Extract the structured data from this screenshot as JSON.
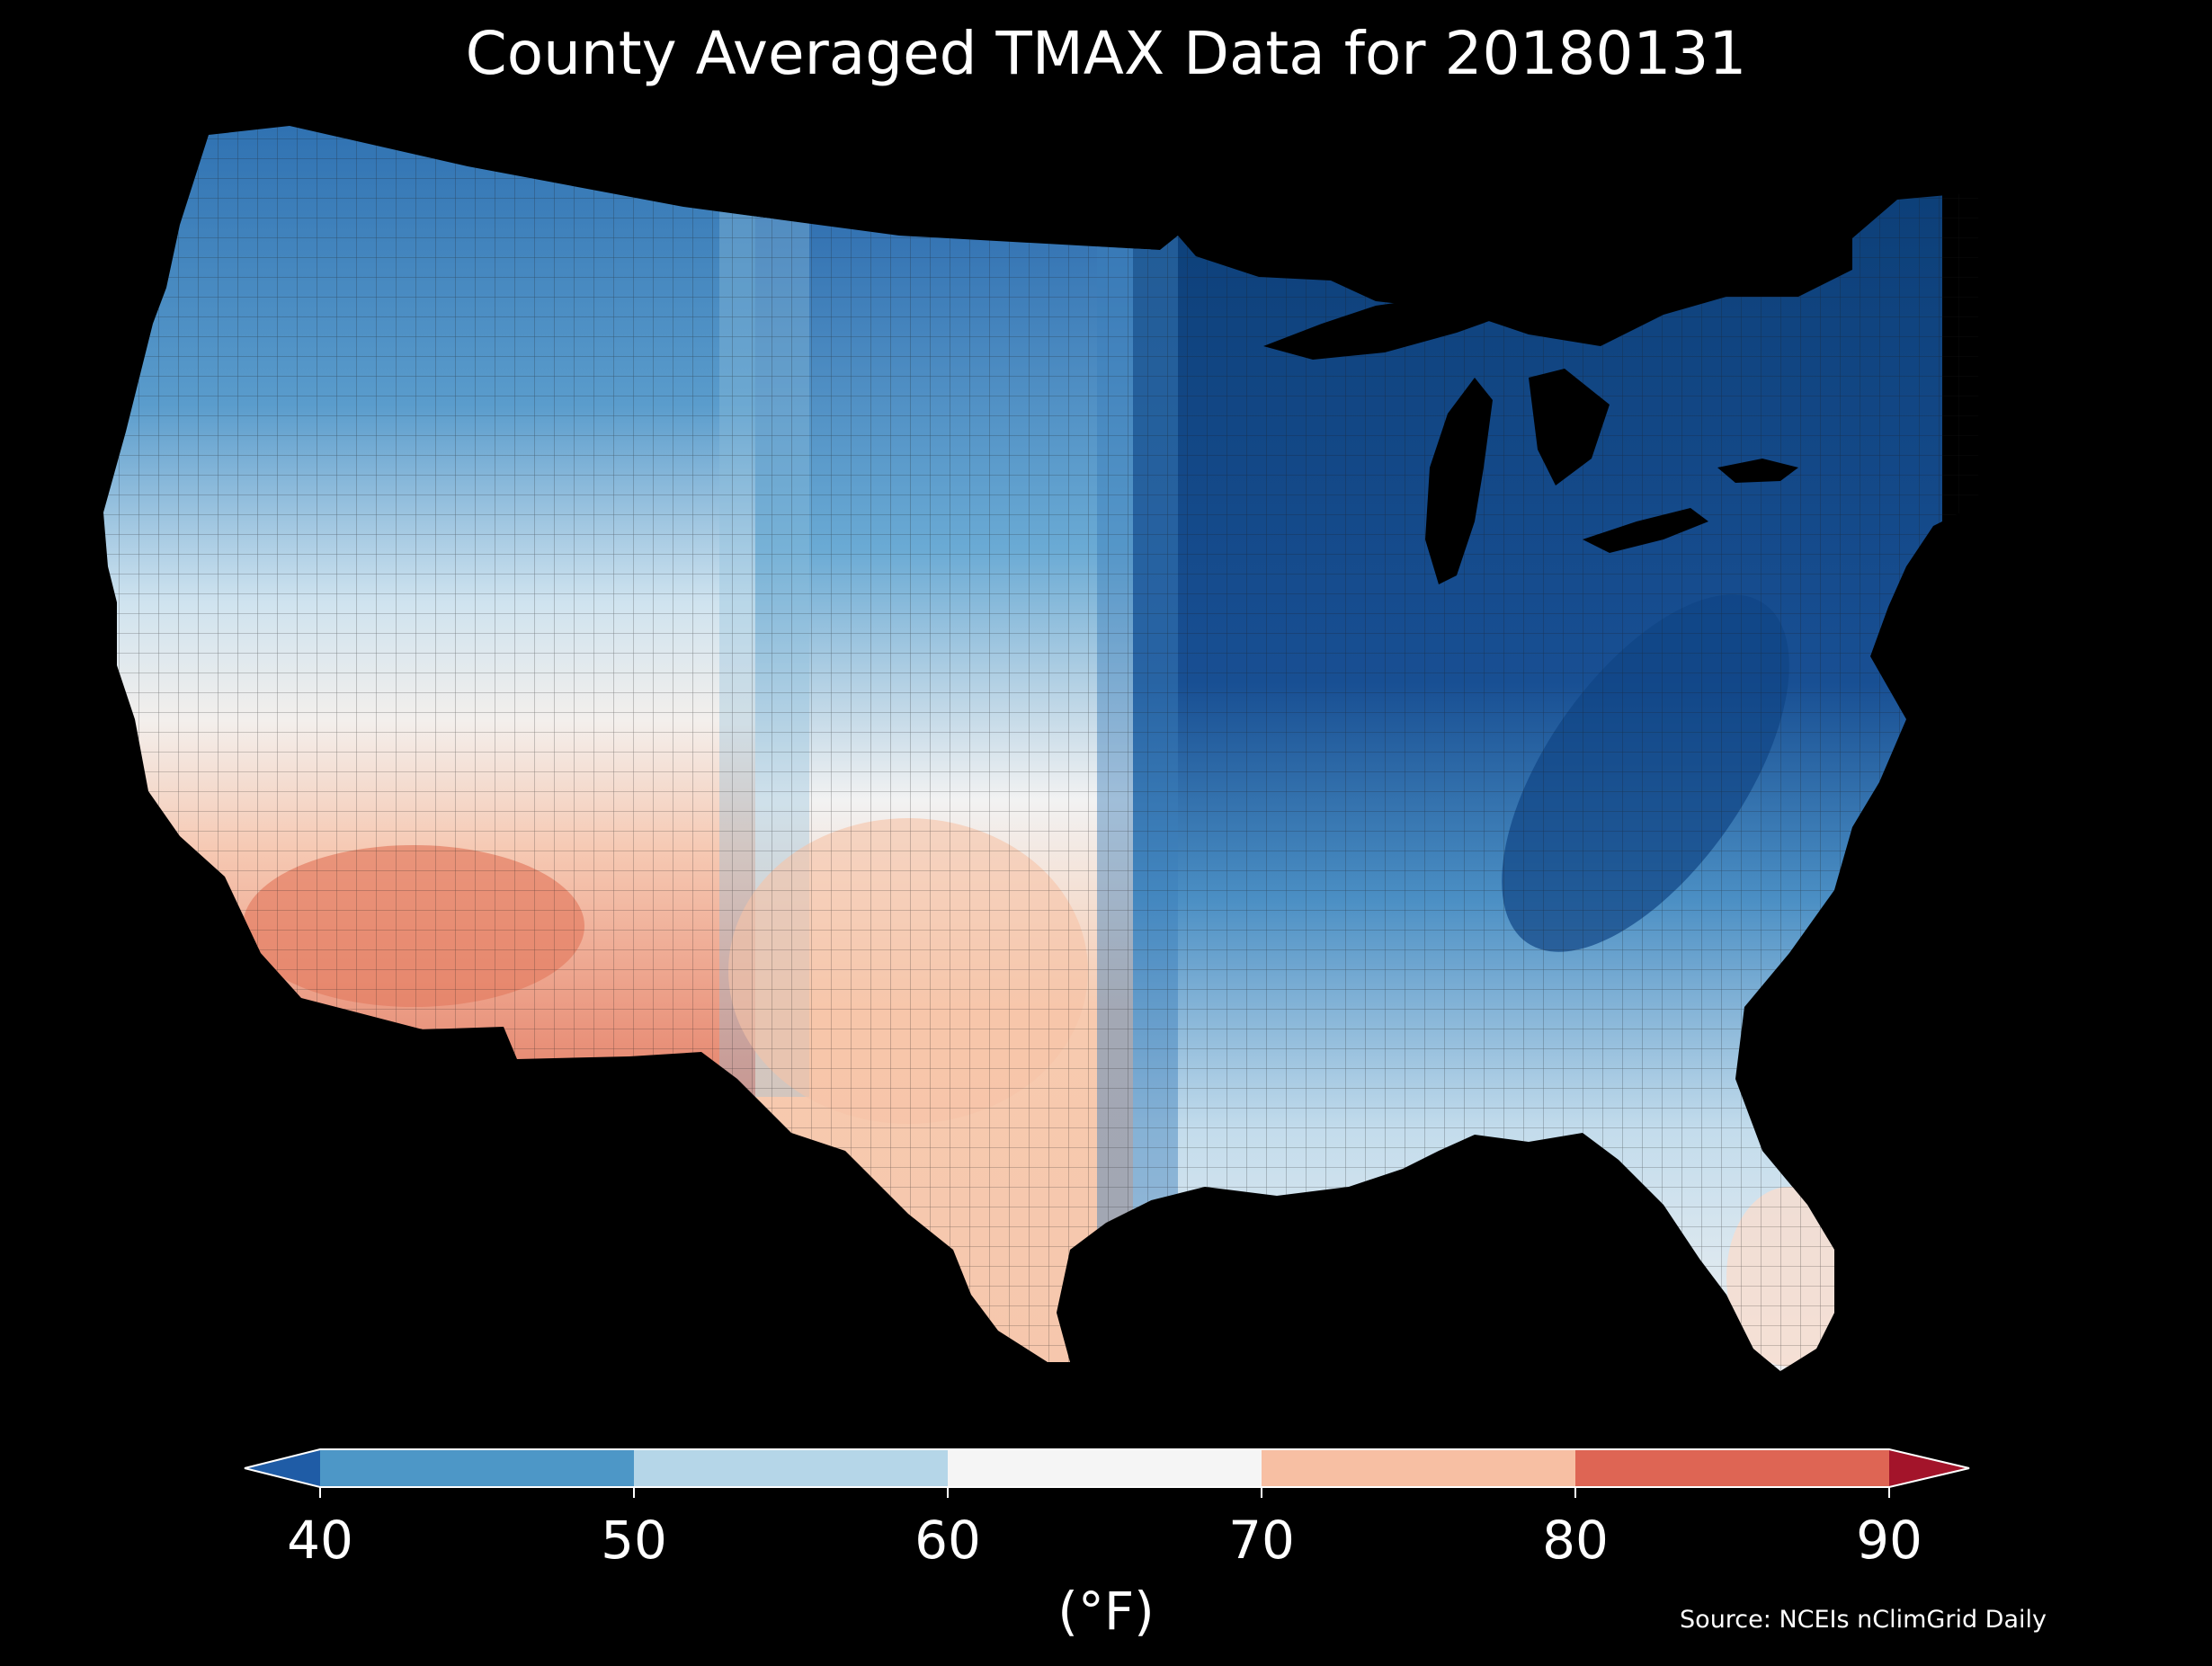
{
  "title": "County Averaged TMAX Data for 20180131",
  "colorbar": {
    "unit_label": "(°F)",
    "ticks": [
      "40",
      "50",
      "60",
      "70",
      "80",
      "90"
    ],
    "bins": [
      {
        "range": "<40",
        "color": "#1f5ca6"
      },
      {
        "range": "40-50",
        "color": "#4d97c7"
      },
      {
        "range": "50-60",
        "color": "#b5d6e8"
      },
      {
        "range": "60-70",
        "color": "#f5f5f5"
      },
      {
        "range": "70-80",
        "color": "#f7bfa3"
      },
      {
        "range": "80-90",
        "color": "#de6554"
      },
      {
        "range": ">90",
        "color": "#a3142a"
      }
    ]
  },
  "source": "Source: NCEIs nClimGrid Daily",
  "background_color": "#000000",
  "map": {
    "region": "Contiguous United States (county level)",
    "variable": "TMAX",
    "colors": {
      "coldest": "#0c3f78",
      "cold": "#2b6fb3",
      "cool": "#6aa9d5",
      "mild": "#d8e8f2",
      "neutral": "#f5f5f5",
      "warm": "#f8d1bd",
      "hot": "#e8866a",
      "lake": "#000000",
      "county_line": "#1a1a1a"
    }
  }
}
